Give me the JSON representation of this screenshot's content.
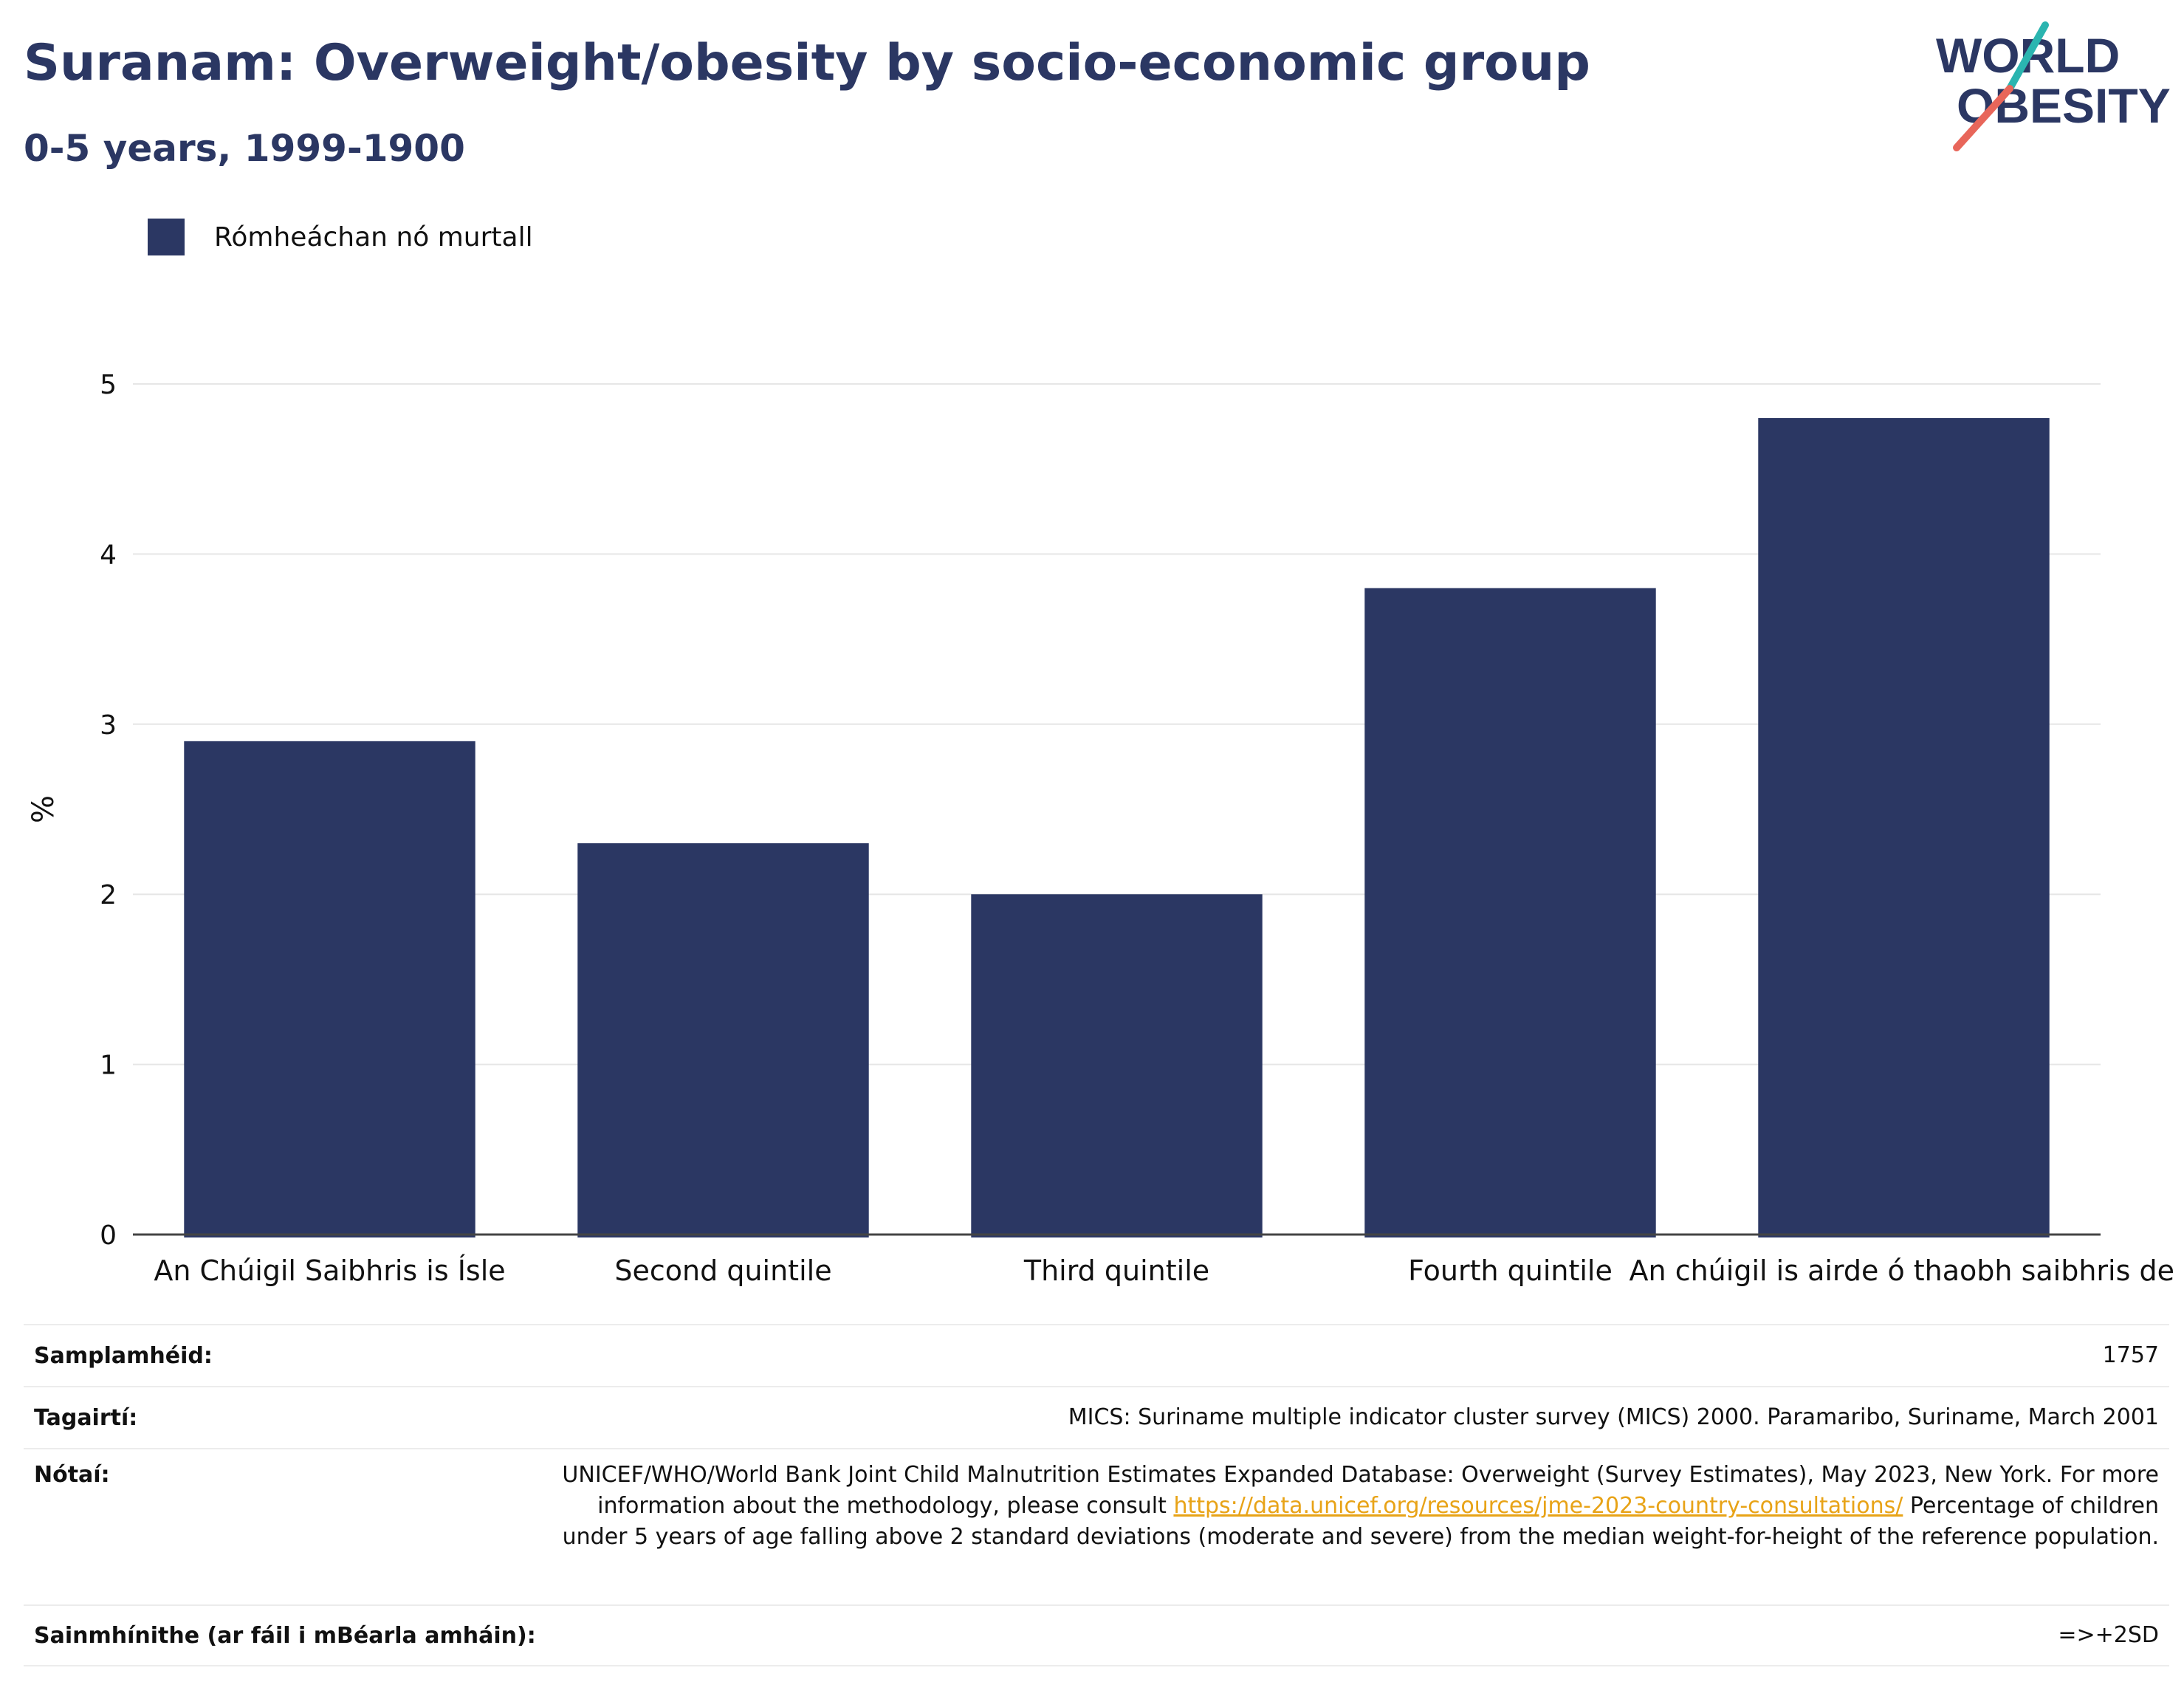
{
  "header": {
    "title": "Suranam: Overweight/obesity by socio-economic group",
    "subtitle": "0-5 years, 1999-1900"
  },
  "logo": {
    "line1": "WORLD",
    "line2": "OBESITY"
  },
  "legend": {
    "label": "Rómheáchan nó murtall",
    "color": "#2b3763"
  },
  "chart_data": {
    "type": "bar",
    "categories": [
      "An Chúigil Saibhris is Ísle",
      "Second quintile",
      "Third quintile",
      "Fourth quintile",
      "An chúigil is airde ó thaobh saibhris de"
    ],
    "series": [
      {
        "name": "Rómheáchan nó murtall",
        "values": [
          2.9,
          2.3,
          2.0,
          3.8,
          4.8
        ]
      }
    ],
    "ylabel": "%",
    "xlabel": "",
    "ylim": [
      0,
      5
    ],
    "yticks": [
      "0",
      "1",
      "2",
      "3",
      "4",
      "5"
    ],
    "grid": true,
    "legend_position": "top-left",
    "bar_color": "#2b3763"
  },
  "info": {
    "sample_size": {
      "label": "Samplamhéid:",
      "value": "1757"
    },
    "references": {
      "label": "Tagairtí:",
      "value": "MICS: Suriname multiple indicator cluster survey (MICS) 2000. Paramaribo, Suriname, March 2001"
    },
    "notes": {
      "label": "Nótaí:",
      "text_before": "UNICEF/WHO/World Bank Joint Child Malnutrition Estimates Expanded Database: Overweight (Survey Estimates), May 2023, New York. For more information about the methodology, please consult ",
      "link": "https://data.unicef.org/resources/jme-2023-country-consultations/",
      "text_after": " Percentage of children under 5 years of age falling above 2 standard deviations (moderate and severe) from the median weight-for-height of the reference population."
    },
    "definitions": {
      "label": "Sainmhínithe (ar fáil i mBéarla amháin):",
      "value": "=>+2SD"
    }
  }
}
